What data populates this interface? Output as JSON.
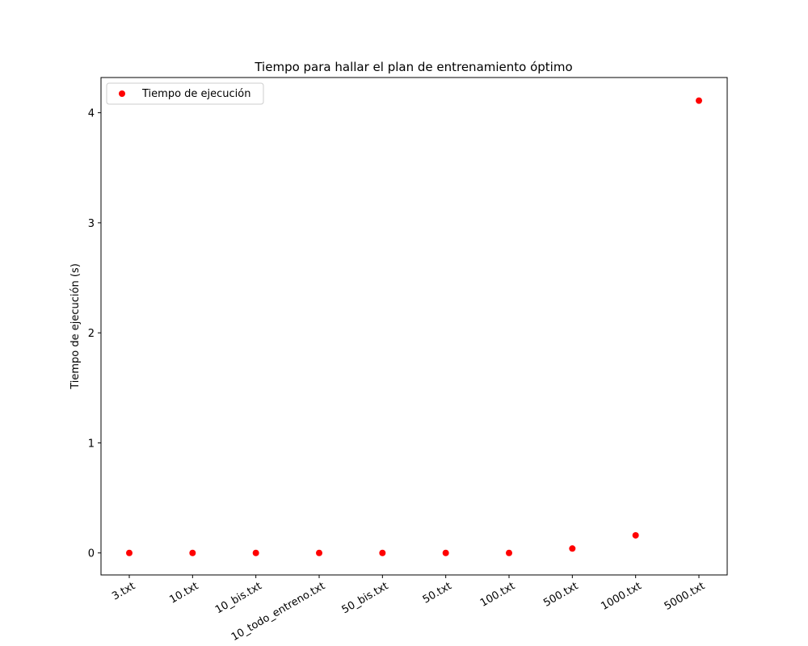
{
  "chart_data": {
    "type": "scatter",
    "title": "Tiempo para hallar el plan de entrenamiento óptimo",
    "xlabel": "",
    "ylabel": "Tiempo de ejecución (s)",
    "categories": [
      "3.txt",
      "10.txt",
      "10_bis.txt",
      "10_todo_entreno.txt",
      "50_bis.txt",
      "50.txt",
      "100.txt",
      "500.txt",
      "1000.txt",
      "5000.txt"
    ],
    "series": [
      {
        "name": "Tiempo de ejecución",
        "color": "#ff0000",
        "values": [
          0.0,
          0.0,
          0.0,
          0.0,
          0.0,
          0.0,
          0.0,
          0.04,
          0.16,
          4.11
        ]
      }
    ],
    "ylim": [
      -0.2,
      4.32
    ],
    "yticks": [
      0,
      1,
      2,
      3,
      4
    ],
    "xtick_rotation": 30,
    "grid": false,
    "legend_position": "upper left"
  }
}
